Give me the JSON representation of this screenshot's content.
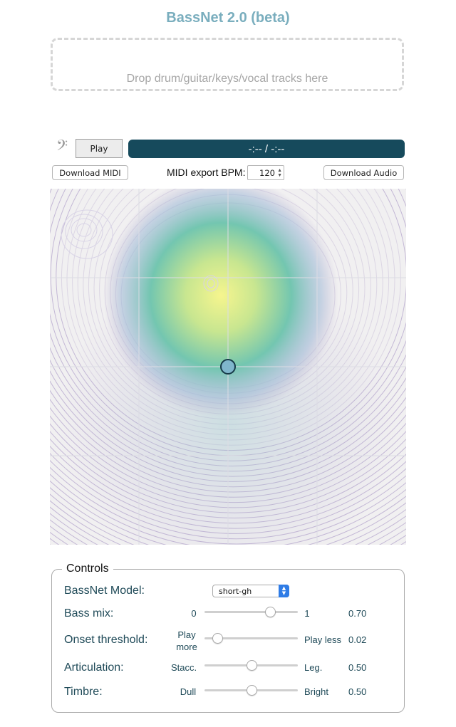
{
  "title": "BassNet 2.0 (beta)",
  "dropzone": {
    "text": "Drop drum/guitar/keys/vocal tracks here"
  },
  "player": {
    "icon": "bass-clef-icon",
    "play_label": "Play",
    "time_display": "-:-- / -:--"
  },
  "export": {
    "download_midi_label": "Download MIDI",
    "bpm_label": "MIDI export BPM:",
    "bpm_value": "120",
    "download_audio_label": "Download Audio"
  },
  "latent_space": {
    "grid": "4x4",
    "marker_position": [
      0.5,
      0.5
    ]
  },
  "controls": {
    "legend": "Controls",
    "model": {
      "label": "BassNet Model:",
      "selected": "short-gh"
    },
    "bass_mix": {
      "label": "Bass mix:",
      "min_label": "0",
      "max_label": "1",
      "value": "0.70",
      "position": 0.7
    },
    "onset_threshold": {
      "label": "Onset threshold:",
      "min_label": "Play more",
      "max_label": "Play less",
      "value": "0.02",
      "position": 0.14
    },
    "articulation": {
      "label": "Articulation:",
      "min_label": "Stacc.",
      "max_label": "Leg.",
      "value": "0.50",
      "position": 0.5
    },
    "timbre": {
      "label": "Timbre:",
      "min_label": "Dull",
      "max_label": "Bright",
      "value": "0.50",
      "position": 0.5
    }
  },
  "colors": {
    "accent": "#7aaebe",
    "time_bar": "#164a5c",
    "label_text": "#1f4a58",
    "contour": "#b4a6cc",
    "hotspot": "#f2f08a",
    "mid": "#73c6b0",
    "marker": "#7fb6cc"
  }
}
